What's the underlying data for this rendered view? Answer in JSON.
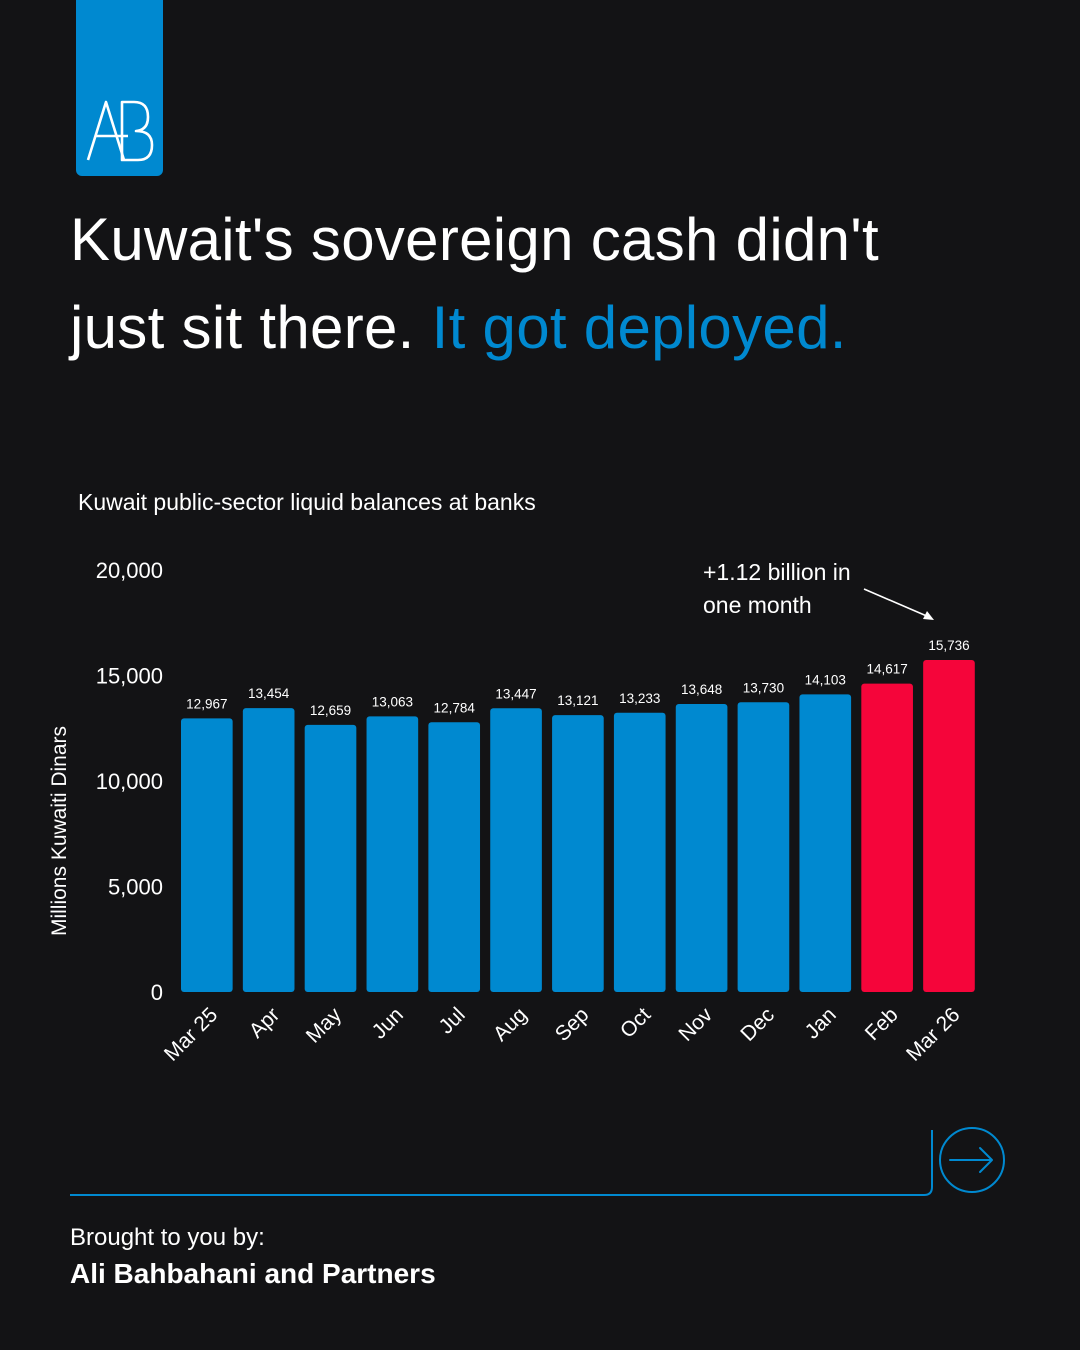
{
  "logo": {
    "monogram": "AB"
  },
  "headline": {
    "part1": "Kuwait's sovereign cash didn't",
    "part2": "just sit there. ",
    "accent": "It got deployed."
  },
  "colors": {
    "background": "#131315",
    "accent_blue": "#0089d0",
    "highlight_red": "#f5053a"
  },
  "chart_data": {
    "type": "bar",
    "title": "Kuwait public-sector liquid balances at banks",
    "ylabel": "Millions Kuwaiti Dinars",
    "xlabel": "",
    "ylim": [
      0,
      20000
    ],
    "yticks": [
      "0",
      "5,000",
      "10,000",
      "15,000",
      "20,000"
    ],
    "grid": false,
    "categories": [
      "Mar 25",
      "Apr",
      "May",
      "Jun",
      "Jul",
      "Aug",
      "Sep",
      "Oct",
      "Nov",
      "Dec",
      "Jan",
      "Feb",
      "Mar 26"
    ],
    "values": [
      12967,
      13454,
      12659,
      13063,
      12784,
      13447,
      13121,
      13233,
      13648,
      13730,
      14103,
      14617,
      15736
    ],
    "value_labels": [
      "12,967",
      "13,454",
      "12,659",
      "13,063",
      "12,784",
      "13,447",
      "13,121",
      "13,233",
      "13,648",
      "13,730",
      "14,103",
      "14,617",
      "15,736"
    ],
    "highlighted_categories": [
      "Feb",
      "Mar 26"
    ],
    "annotation": {
      "line1": "+1.12 billion in",
      "line2": "one month",
      "target": "Mar 26"
    }
  },
  "footer": {
    "brought_label": "Brought to you by:",
    "company": "Ali Bahbahani and Partners",
    "next_icon": "arrow-right-icon"
  }
}
